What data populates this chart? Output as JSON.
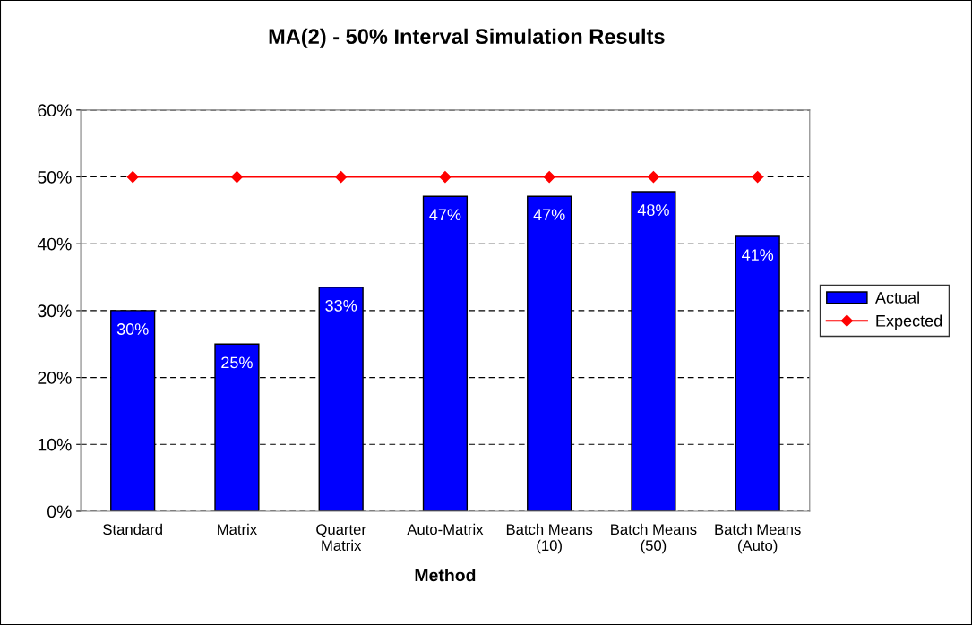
{
  "chart_data": {
    "type": "bar",
    "title": "MA(2) - 50% Interval Simulation Results",
    "xlabel": "Method",
    "categories": [
      "Standard",
      "Matrix",
      "Quarter\nMatrix",
      "Auto-Matrix",
      "Batch Means\n(10)",
      "Batch Means\n(50)",
      "Batch Means\n(Auto)"
    ],
    "series": [
      {
        "name": "Actual",
        "color": "#0000ff",
        "values": [
          30,
          25,
          33.5,
          47.1,
          47.1,
          47.8,
          41.1
        ],
        "value_labels": [
          "30%",
          "25%",
          "33%",
          "47%",
          "47%",
          "48%",
          "41%"
        ]
      },
      {
        "name": "Expected",
        "type": "line",
        "color": "#ff0000",
        "marker": "diamond",
        "line_style": "solid",
        "values": [
          50,
          50,
          50,
          50,
          50,
          50,
          50
        ]
      }
    ],
    "ylim": [
      0,
      60
    ],
    "yticks": [
      {
        "value": 0,
        "label": "0%"
      },
      {
        "value": 10,
        "label": "10%"
      },
      {
        "value": 20,
        "label": "20%"
      },
      {
        "value": 30,
        "label": "30%"
      },
      {
        "value": 40,
        "label": "40%"
      },
      {
        "value": 50,
        "label": "50%"
      },
      {
        "value": 60,
        "label": "60%"
      }
    ],
    "grid": "y",
    "legend": "right"
  }
}
